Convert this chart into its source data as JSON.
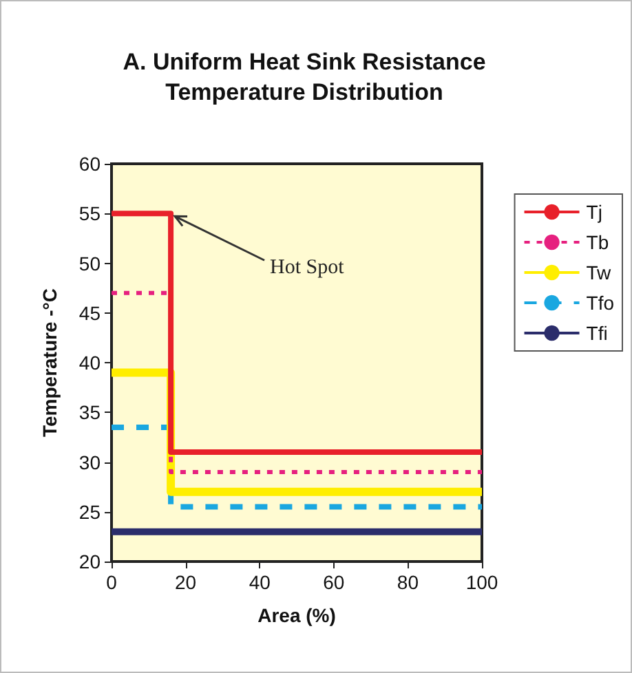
{
  "chart_data": {
    "type": "step",
    "title": "A. Uniform Heat Sink Resistance\nTemperature Distribution",
    "xlabel": "Area (%)",
    "ylabel": "Temperature -°C",
    "x": [
      0,
      16,
      100
    ],
    "series": [
      {
        "name": "Tj",
        "color": "#e8202a",
        "values": [
          55,
          31,
          31
        ],
        "line_style": "solid"
      },
      {
        "name": "Tb",
        "color": "#e6207f",
        "values": [
          47,
          29,
          29
        ],
        "line_style": "dotted"
      },
      {
        "name": "Tw",
        "color": "#ffee00",
        "values": [
          39,
          27,
          27
        ],
        "line_style": "solid"
      },
      {
        "name": "Tfo",
        "color": "#1aa7e0",
        "values": [
          33.5,
          25.5,
          25.5
        ],
        "line_style": "dashed"
      },
      {
        "name": "Tfi",
        "color": "#2b2d6b",
        "values": [
          23,
          23,
          23
        ],
        "line_style": "solid"
      }
    ],
    "xlim": [
      0,
      100
    ],
    "xticks": [
      0,
      20,
      40,
      60,
      80,
      100
    ],
    "ylim": [
      20,
      60
    ],
    "yticks": [
      20,
      25,
      30,
      35,
      40,
      45,
      50,
      55,
      60
    ],
    "annotations": [
      {
        "text": "Hot Spot",
        "x": 16,
        "y": 55
      }
    ],
    "grid": false,
    "legend": "right",
    "marker": "none"
  }
}
